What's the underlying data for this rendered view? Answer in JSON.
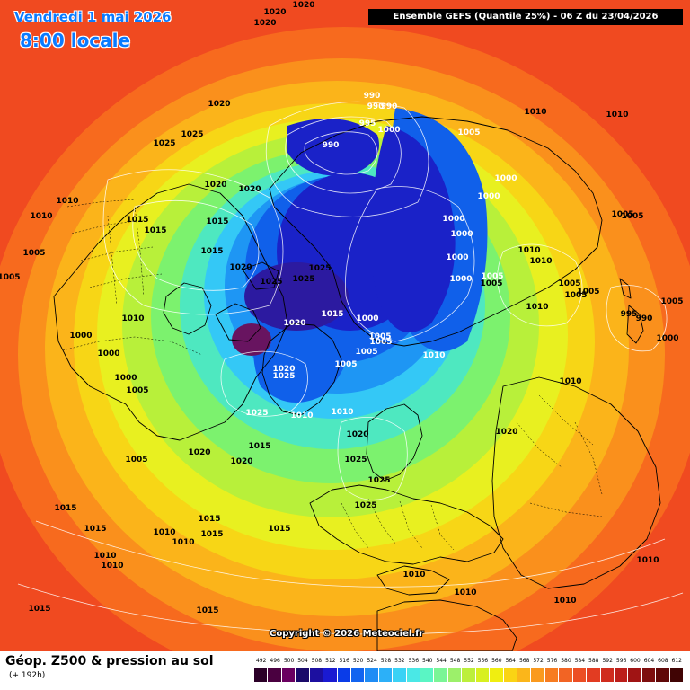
{
  "header": {
    "date_title": "Vendredi 1 mai 2026",
    "time_title": "8:00 locale",
    "run_banner": "Ensemble GEFS  (Quantile 25%) - 06 Z du 23/04/2026"
  },
  "footer": {
    "title": "Géop. Z500 & pression au sol",
    "subtitle": "(+ 192h)"
  },
  "copyright": "Copyright © 2026 Meteociel.fr",
  "legend": {
    "values": [
      "492",
      "496",
      "500",
      "504",
      "508",
      "512",
      "516",
      "520",
      "524",
      "528",
      "532",
      "536",
      "540",
      "544",
      "548",
      "552",
      "556",
      "560",
      "564",
      "568",
      "572",
      "576",
      "580",
      "584",
      "588",
      "592",
      "596",
      "600",
      "604",
      "608",
      "612"
    ],
    "colors": [
      "#2b0028",
      "#4a0040",
      "#6a0060",
      "#1a0a6a",
      "#1c0fa0",
      "#1a1ad2",
      "#0a3ce8",
      "#1264f0",
      "#1e8cf5",
      "#2cb0f8",
      "#3ad2f5",
      "#4ae8e6",
      "#5af5c4",
      "#7af596",
      "#9cf06a",
      "#bcef3c",
      "#d8f020",
      "#f0ee10",
      "#fad414",
      "#fbb61a",
      "#fa9a1e",
      "#f77c20",
      "#f26424",
      "#ec4e24",
      "#e23c22",
      "#d02c1e",
      "#bc1e1a",
      "#a01414",
      "#7e0e0e",
      "#600808",
      "#400404"
    ]
  },
  "map": {
    "layers": [
      {
        "color": "#f04a20"
      },
      {
        "color": "#f76a1e"
      },
      {
        "color": "#fa901c"
      },
      {
        "color": "#fbb41a"
      },
      {
        "color": "#f7d616"
      },
      {
        "color": "#e8f020"
      },
      {
        "color": "#b8f03a"
      },
      {
        "color": "#7cf26e"
      },
      {
        "color": "#4ee8c0"
      },
      {
        "color": "#34c8f6"
      },
      {
        "color": "#1e96f4"
      },
      {
        "color": "#1060ea"
      },
      {
        "color": "#1a22c8"
      },
      {
        "color": "#2c1aa0"
      },
      {
        "color": "#681460"
      }
    ],
    "pressure_labels": [
      {
        "text": "1020",
        "low": false
      },
      {
        "text": "1020",
        "low": false
      },
      {
        "text": "1020",
        "low": false
      },
      {
        "text": "1020",
        "low": false
      },
      {
        "text": "1025",
        "low": false
      },
      {
        "text": "1025",
        "low": false
      },
      {
        "text": "1020",
        "low": false
      },
      {
        "text": "1020",
        "low": false
      },
      {
        "text": "1010",
        "low": false
      },
      {
        "text": "1010",
        "low": false
      },
      {
        "text": "1015",
        "low": false
      },
      {
        "text": "1015",
        "low": false
      },
      {
        "text": "1015",
        "low": false
      },
      {
        "text": "1015",
        "low": false
      },
      {
        "text": "1005",
        "low": false
      },
      {
        "text": "1005",
        "low": false
      },
      {
        "text": "1020",
        "low": false
      },
      {
        "text": "1025",
        "low": false
      },
      {
        "text": "1025",
        "low": false
      },
      {
        "text": "1025",
        "low": false
      },
      {
        "text": "1010",
        "low": false
      },
      {
        "text": "1000",
        "low": false
      },
      {
        "text": "1000",
        "low": false
      },
      {
        "text": "1000",
        "low": false
      },
      {
        "text": "1005",
        "low": false
      },
      {
        "text": "1020",
        "low": true
      },
      {
        "text": "1015",
        "low": true
      },
      {
        "text": "1020",
        "low": true
      },
      {
        "text": "1025",
        "low": true
      },
      {
        "text": "1025",
        "low": true
      },
      {
        "text": "1010",
        "low": true
      },
      {
        "text": "1010",
        "low": true
      },
      {
        "text": "1015",
        "low": false
      },
      {
        "text": "1020",
        "low": false
      },
      {
        "text": "1020",
        "low": false
      },
      {
        "text": "1005",
        "low": false
      },
      {
        "text": "990",
        "low": true
      },
      {
        "text": "990",
        "low": true
      },
      {
        "text": "990",
        "low": true
      },
      {
        "text": "995",
        "low": true
      },
      {
        "text": "990",
        "low": true
      },
      {
        "text": "1000",
        "low": true
      },
      {
        "text": "1005",
        "low": true
      },
      {
        "text": "1000",
        "low": true
      },
      {
        "text": "1000",
        "low": true
      },
      {
        "text": "1000",
        "low": true
      },
      {
        "text": "1000",
        "low": true
      },
      {
        "text": "1000",
        "low": true
      },
      {
        "text": "1000",
        "low": true
      },
      {
        "text": "1000",
        "low": true
      },
      {
        "text": "1005",
        "low": true
      },
      {
        "text": "1005",
        "low": true
      },
      {
        "text": "1005",
        "low": true
      },
      {
        "text": "1005",
        "low": true
      },
      {
        "text": "1005",
        "low": true
      },
      {
        "text": "1010",
        "low": true
      },
      {
        "text": "1010",
        "low": false
      },
      {
        "text": "1010",
        "low": false
      },
      {
        "text": "1010",
        "low": false
      },
      {
        "text": "1010",
        "low": false
      },
      {
        "text": "1005",
        "low": false
      },
      {
        "text": "1005",
        "low": false
      },
      {
        "text": "1005",
        "low": false
      },
      {
        "text": "1005",
        "low": false
      },
      {
        "text": "1005",
        "low": false
      },
      {
        "text": "1005",
        "low": false
      },
      {
        "text": "1005",
        "low": false
      },
      {
        "text": "995",
        "low": false
      },
      {
        "text": "990",
        "low": false
      },
      {
        "text": "1000",
        "low": false
      },
      {
        "text": "1010",
        "low": false
      },
      {
        "text": "1010",
        "low": false
      },
      {
        "text": "1020",
        "low": false
      },
      {
        "text": "1020",
        "low": false
      },
      {
        "text": "1025",
        "low": false
      },
      {
        "text": "1025",
        "low": false
      },
      {
        "text": "1025",
        "low": false
      },
      {
        "text": "1015",
        "low": false
      },
      {
        "text": "1015",
        "low": false
      },
      {
        "text": "1015",
        "low": false
      },
      {
        "text": "1010",
        "low": false
      },
      {
        "text": "1010",
        "low": false
      },
      {
        "text": "1010",
        "low": false
      },
      {
        "text": "1010",
        "low": false
      },
      {
        "text": "1015",
        "low": false
      },
      {
        "text": "1015",
        "low": false
      },
      {
        "text": "1015",
        "low": false
      },
      {
        "text": "1015",
        "low": false
      },
      {
        "text": "1010",
        "low": false
      },
      {
        "text": "1010",
        "low": false
      },
      {
        "text": "1010",
        "low": false
      },
      {
        "text": "1010",
        "low": false
      },
      {
        "text": "1010",
        "low": false
      }
    ]
  }
}
